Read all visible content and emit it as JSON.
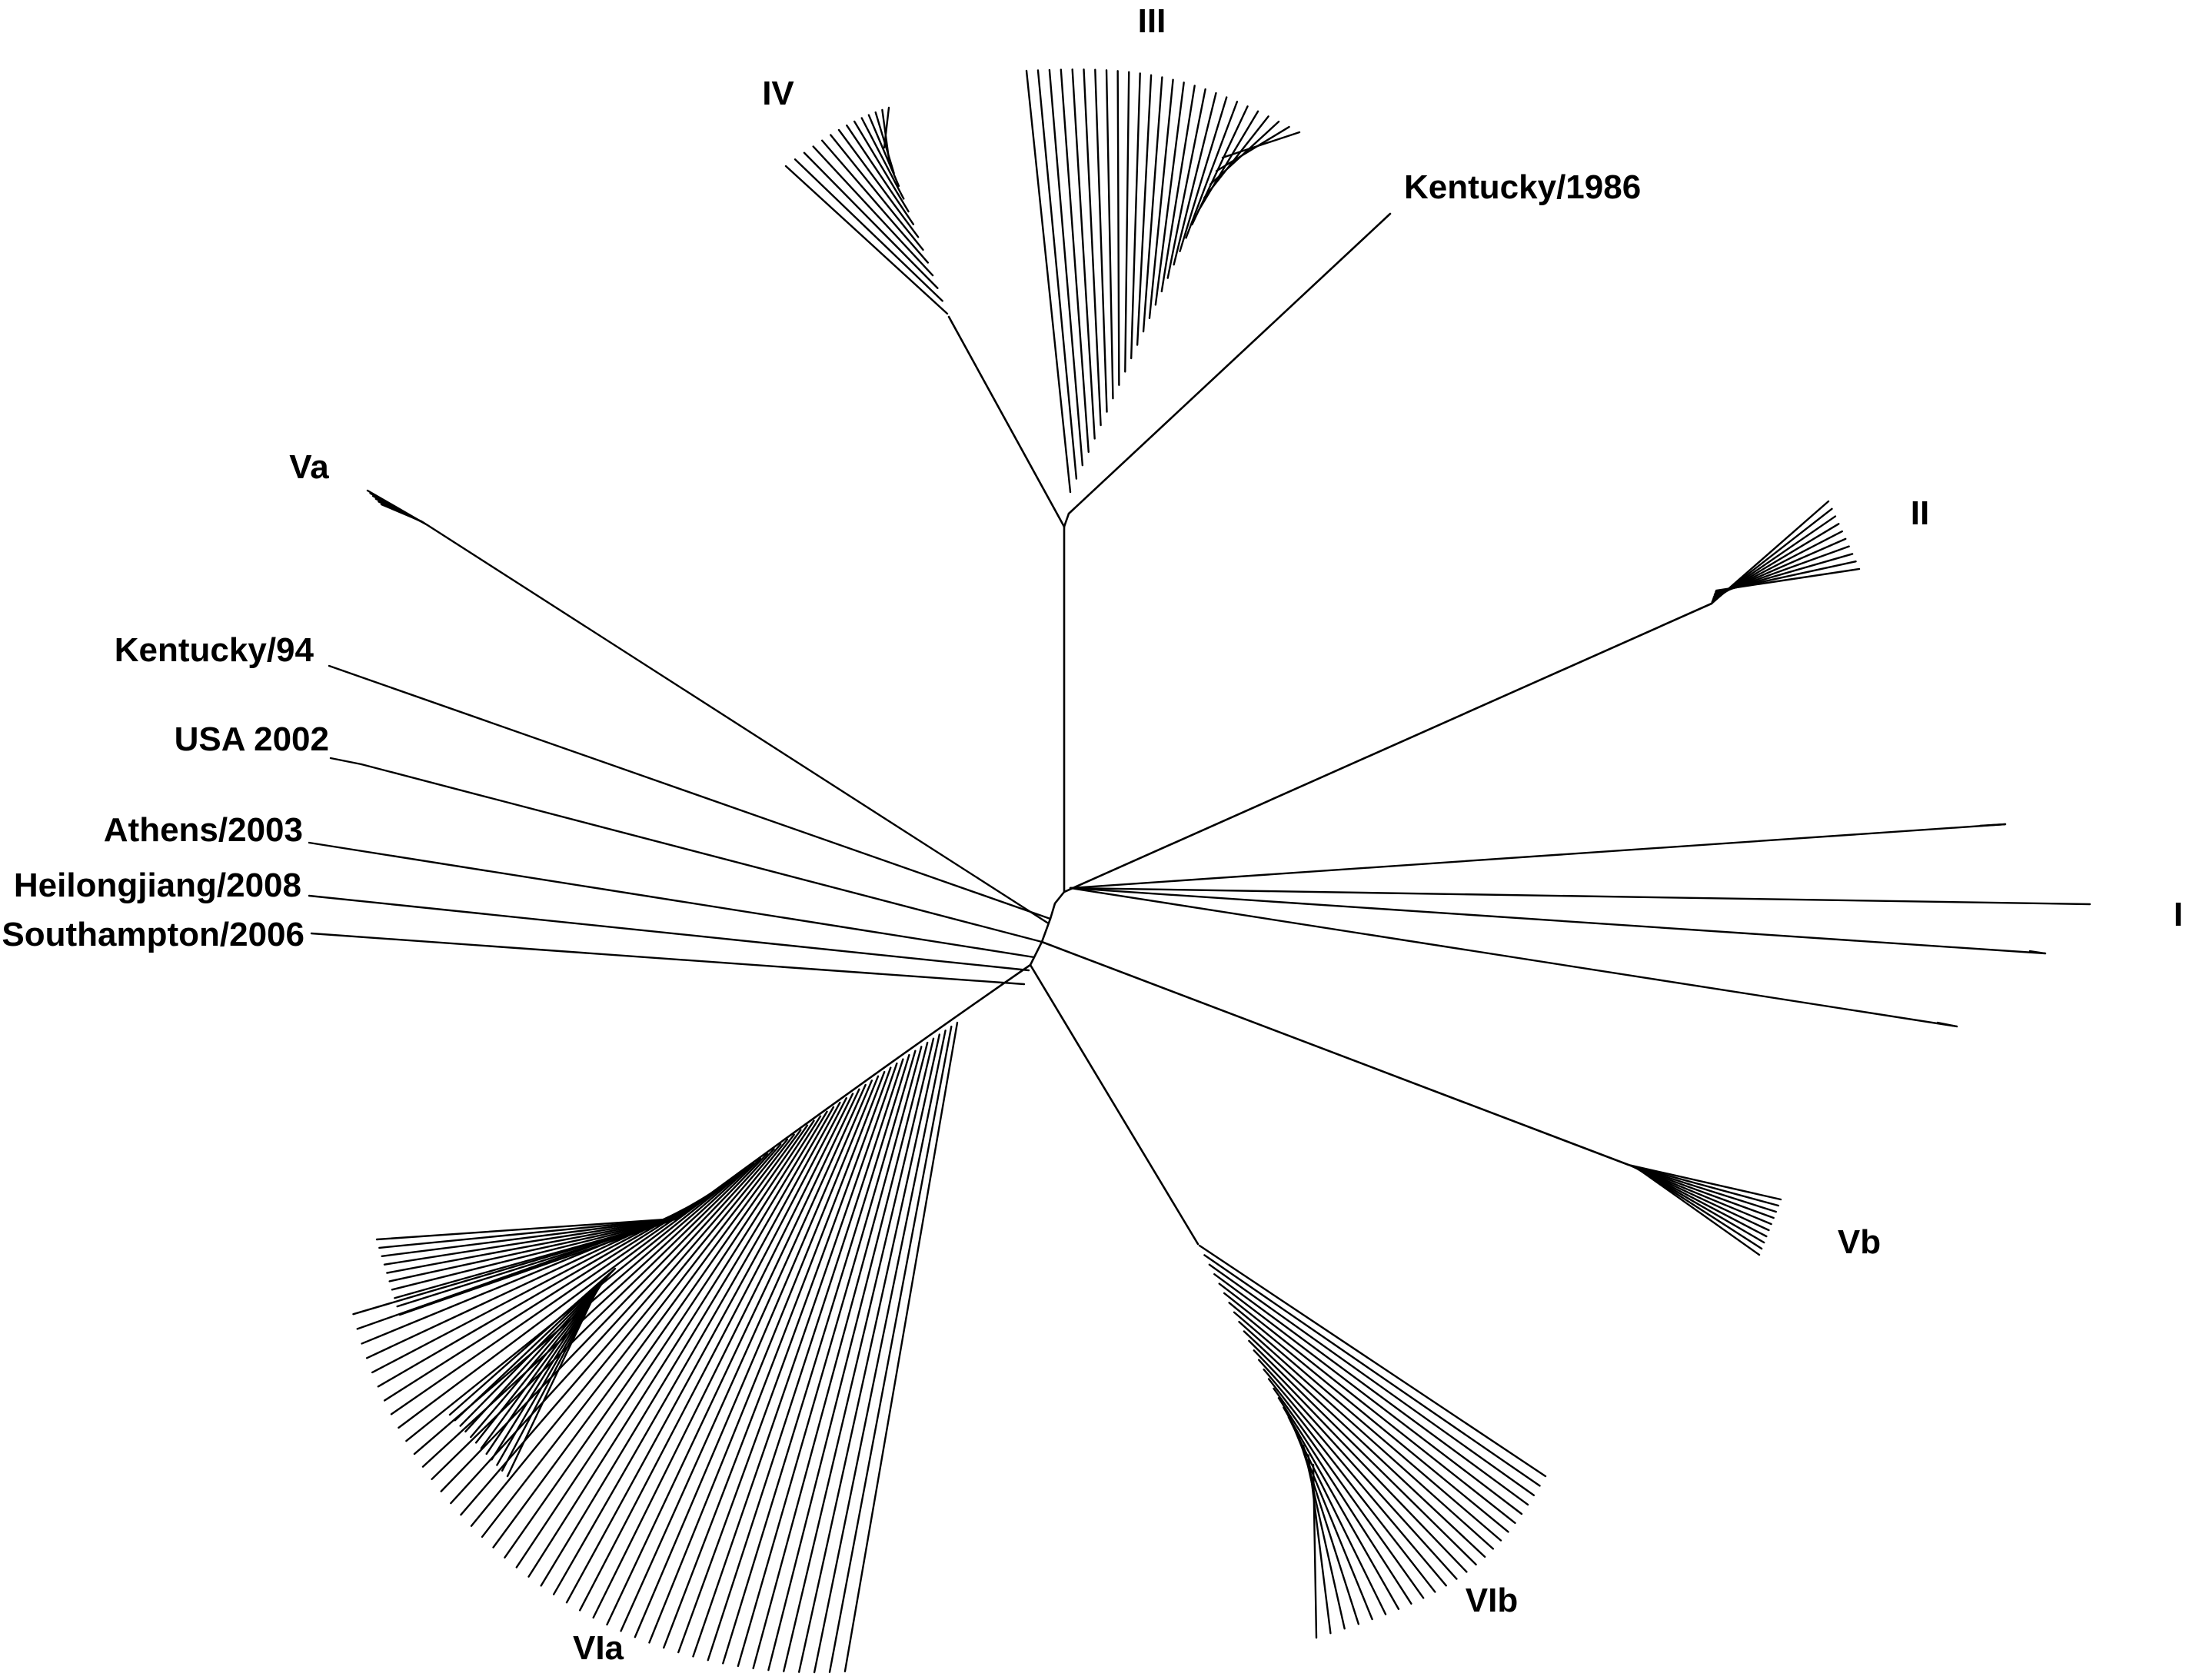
{
  "clade_labels": {
    "I": "I",
    "II": "II",
    "III": "III",
    "IV": "IV",
    "Va": "Va",
    "Vb": "Vb",
    "VIa": "VIa",
    "VIb": "VIb"
  },
  "strain_labels": {
    "kentucky_1986": "Kentucky/1986",
    "kentucky_94": "Kentucky/94",
    "usa_2002": "USA 2002",
    "athens_2003": "Athens/2003",
    "heilongjiang_2008": "Heilongjiang/2008",
    "southampton_2006": "Southampton/2006"
  },
  "colors": {
    "line": "#000000",
    "label": "#000000",
    "background": "#ffffff"
  }
}
